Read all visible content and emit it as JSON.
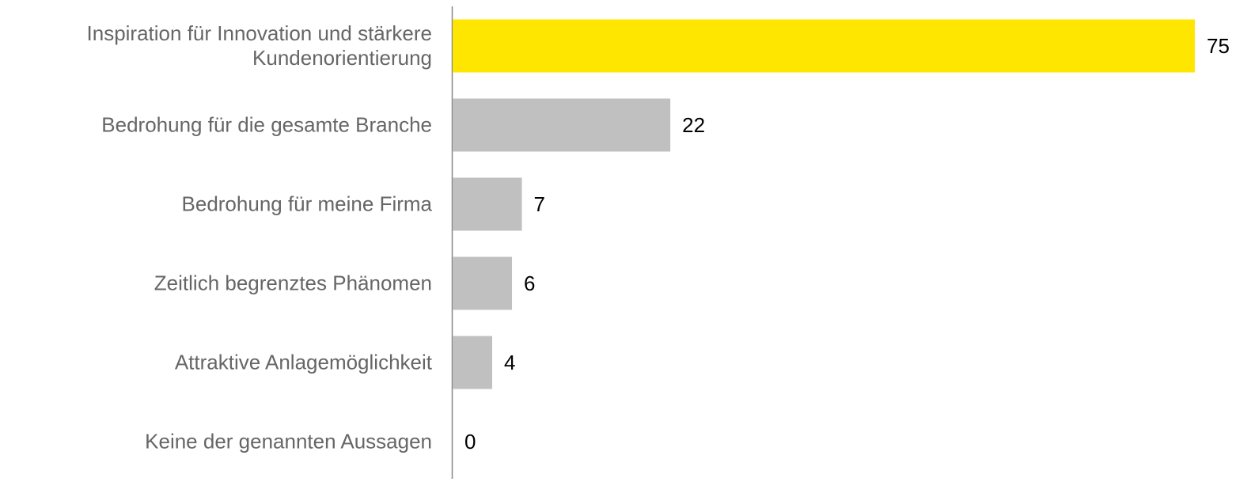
{
  "chart_data": {
    "type": "bar",
    "orientation": "horizontal",
    "categories": [
      "Inspiration für Innovation und stärkere Kundenorientierung",
      "Bedrohung für die gesamte Branche",
      "Bedrohung für meine Firma",
      "Zeitlich begrenztes Phänomen",
      "Attraktive Anlagemöglichkeit",
      "Keine der genannten Aussagen"
    ],
    "values": [
      75,
      22,
      7,
      6,
      4,
      0
    ],
    "colors": [
      "#ffe600",
      "#c0c0c0",
      "#c0c0c0",
      "#c0c0c0",
      "#c0c0c0",
      "#c0c0c0"
    ],
    "xlim": [
      0,
      75
    ]
  }
}
